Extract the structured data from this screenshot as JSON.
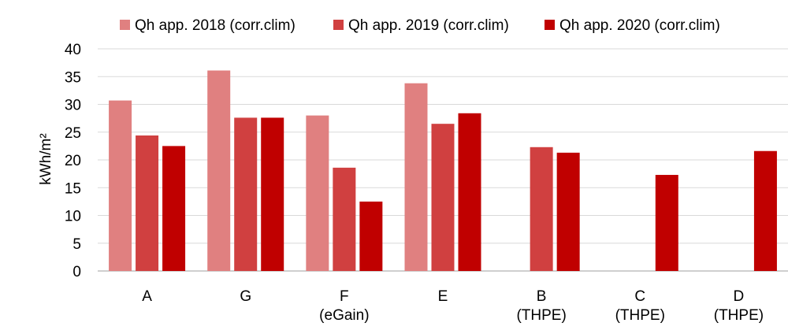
{
  "chart_data": {
    "type": "bar",
    "title": "",
    "xlabel": "",
    "ylabel": "kWh/m²",
    "ylim": [
      0,
      40
    ],
    "yticks": [
      0,
      5,
      10,
      15,
      20,
      25,
      30,
      35,
      40
    ],
    "grid": "horizontal",
    "legend_position": "top",
    "categories": [
      [
        "A"
      ],
      [
        "G"
      ],
      [
        "F",
        "(eGain)"
      ],
      [
        "E"
      ],
      [
        "B",
        "(THPE)"
      ],
      [
        "C",
        "(THPE)"
      ],
      [
        "D",
        "(THPE)"
      ]
    ],
    "series": [
      {
        "name": "Qh app. 2018 (corr.clim)",
        "color": "#E08080",
        "values": [
          30.7,
          36.1,
          28.0,
          33.8,
          null,
          null,
          null
        ]
      },
      {
        "name": "Qh app. 2019 (corr.clim)",
        "color": "#D04040",
        "values": [
          24.4,
          27.6,
          18.6,
          26.5,
          22.3,
          null,
          null
        ]
      },
      {
        "name": "Qh app. 2020 (corr.clim)",
        "color": "#C00000",
        "values": [
          22.5,
          27.6,
          12.5,
          28.4,
          21.3,
          17.3,
          21.6
        ]
      }
    ]
  }
}
